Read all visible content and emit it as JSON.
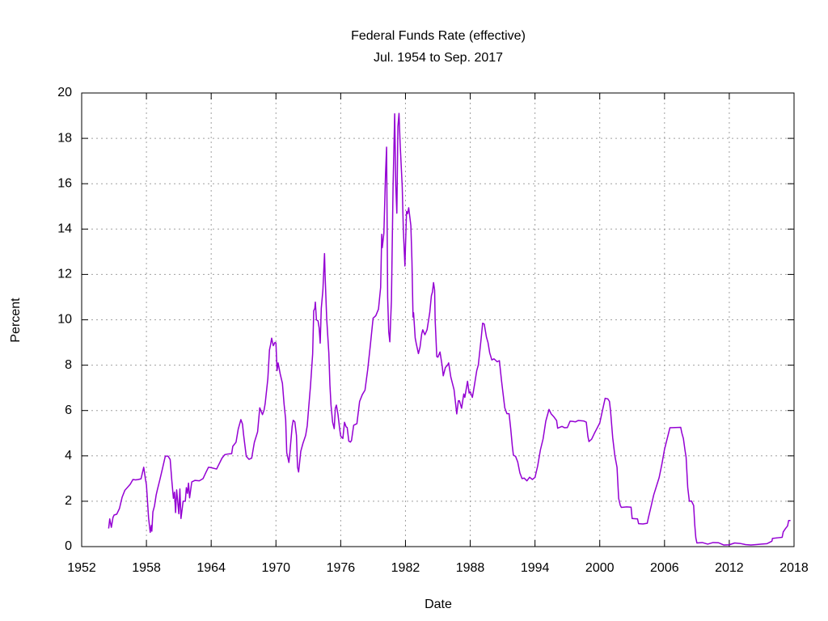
{
  "chart_data": {
    "type": "line",
    "title": "Federal Funds Rate (effective)",
    "subtitle": "Jul. 1954 to Sep. 2017",
    "x_label": "Date",
    "y_label": "Percent",
    "xlim": [
      1952,
      2018
    ],
    "xticks": [
      1952,
      1958,
      1964,
      1970,
      1976,
      1982,
      1988,
      1994,
      2000,
      2006,
      2012,
      2018
    ],
    "ylim": [
      0,
      20
    ],
    "yticks": [
      0,
      2,
      4,
      6,
      8,
      10,
      12,
      14,
      16,
      18,
      20
    ],
    "grid": true,
    "color": "#9400d3",
    "x": [
      1954.5,
      1954.6,
      1954.75,
      1954.9,
      1955.0,
      1955.25,
      1955.5,
      1955.75,
      1956.0,
      1956.5,
      1956.75,
      1957.0,
      1957.25,
      1957.5,
      1957.75,
      1957.9,
      1958.0,
      1958.2,
      1958.35,
      1958.45,
      1958.5,
      1958.6,
      1958.75,
      1958.9,
      1959.0,
      1959.25,
      1959.5,
      1959.75,
      1960.0,
      1960.2,
      1960.35,
      1960.5,
      1960.6,
      1960.7,
      1960.8,
      1960.9,
      1961.0,
      1961.1,
      1961.2,
      1961.4,
      1961.6,
      1961.7,
      1961.8,
      1961.9,
      1962.0,
      1962.2,
      1962.5,
      1962.9,
      1963.25,
      1963.5,
      1963.75,
      1964.0,
      1964.5,
      1965.0,
      1965.25,
      1965.5,
      1965.9,
      1966.0,
      1966.3,
      1966.5,
      1966.75,
      1966.9,
      1967.0,
      1967.25,
      1967.5,
      1967.75,
      1968.0,
      1968.3,
      1968.5,
      1968.75,
      1968.9,
      1969.0,
      1969.25,
      1969.4,
      1969.5,
      1969.6,
      1969.75,
      1969.9,
      1970.0,
      1970.1,
      1970.2,
      1970.4,
      1970.6,
      1970.75,
      1970.9,
      1971.0,
      1971.2,
      1971.3,
      1971.5,
      1971.6,
      1971.75,
      1971.9,
      1972.0,
      1972.1,
      1972.3,
      1972.5,
      1972.75,
      1972.9,
      1973.0,
      1973.2,
      1973.4,
      1973.5,
      1973.6,
      1973.65,
      1973.75,
      1973.9,
      1974.0,
      1974.1,
      1974.2,
      1974.35,
      1974.5,
      1974.55,
      1974.7,
      1974.9,
      1975.0,
      1975.1,
      1975.25,
      1975.4,
      1975.5,
      1975.6,
      1975.75,
      1975.9,
      1976.0,
      1976.2,
      1976.35,
      1976.5,
      1976.6,
      1976.75,
      1976.9,
      1977.0,
      1977.2,
      1977.5,
      1977.75,
      1978.0,
      1978.25,
      1978.5,
      1978.75,
      1979.0,
      1979.25,
      1979.5,
      1979.7,
      1979.8,
      1979.85,
      1980.0,
      1980.15,
      1980.25,
      1980.35,
      1980.45,
      1980.55,
      1980.7,
      1980.85,
      1981.0,
      1981.1,
      1981.2,
      1981.3,
      1981.4,
      1981.5,
      1981.7,
      1981.8,
      1981.95,
      1982.0,
      1982.1,
      1982.2,
      1982.3,
      1982.5,
      1982.6,
      1982.7,
      1982.75,
      1982.9,
      1983.0,
      1983.2,
      1983.35,
      1983.5,
      1983.6,
      1983.8,
      1984.0,
      1984.25,
      1984.4,
      1984.5,
      1984.6,
      1984.7,
      1984.75,
      1984.9,
      1985.0,
      1985.2,
      1985.4,
      1985.5,
      1985.7,
      1985.9,
      1986.0,
      1986.2,
      1986.5,
      1986.75,
      1986.9,
      1987.0,
      1987.2,
      1987.4,
      1987.5,
      1987.75,
      1987.9,
      1988.0,
      1988.2,
      1988.4,
      1988.6,
      1988.75,
      1989.0,
      1989.15,
      1989.3,
      1989.5,
      1989.65,
      1989.8,
      1990.0,
      1990.2,
      1990.5,
      1990.7,
      1990.9,
      1991.0,
      1991.2,
      1991.4,
      1991.6,
      1991.75,
      1991.9,
      1992.0,
      1992.2,
      1992.4,
      1992.6,
      1992.8,
      1993.0,
      1993.25,
      1993.5,
      1993.75,
      1994.0,
      1994.25,
      1994.5,
      1994.75,
      1995.0,
      1995.3,
      1995.5,
      1995.75,
      1996.0,
      1996.1,
      1996.5,
      1996.75,
      1997.0,
      1997.25,
      1997.5,
      1997.75,
      1998.0,
      1998.5,
      1998.75,
      1998.9,
      1999.0,
      1999.25,
      1999.5,
      1999.75,
      2000.0,
      2000.25,
      2000.5,
      2000.75,
      2000.9,
      2001.0,
      2001.2,
      2001.4,
      2001.6,
      2001.75,
      2001.9,
      2002.0,
      2002.5,
      2002.9,
      2003.0,
      2003.5,
      2003.6,
      2004.0,
      2004.4,
      2004.5,
      2004.75,
      2005.0,
      2005.5,
      2005.75,
      2006.0,
      2006.5,
      2007.0,
      2007.5,
      2007.6,
      2007.75,
      2007.9,
      2008.0,
      2008.15,
      2008.3,
      2008.5,
      2008.7,
      2008.8,
      2008.9,
      2009.0,
      2009.5,
      2010.0,
      2010.5,
      2011.0,
      2011.5,
      2012.0,
      2012.5,
      2013.0,
      2013.5,
      2014.0,
      2014.5,
      2015.0,
      2015.5,
      2015.95,
      2016.0,
      2016.5,
      2016.9,
      2017.0,
      2017.2,
      2017.4,
      2017.5,
      2017.67
    ],
    "values": [
      0.8,
      1.22,
      0.85,
      1.28,
      1.39,
      1.43,
      1.68,
      2.18,
      2.48,
      2.75,
      2.96,
      2.94,
      2.96,
      2.99,
      3.5,
      3.0,
      2.72,
      1.26,
      0.63,
      0.93,
      0.68,
      1.53,
      1.8,
      2.27,
      2.48,
      2.96,
      3.47,
      3.99,
      3.99,
      3.84,
      2.92,
      2.13,
      2.4,
      1.5,
      2.5,
      1.98,
      1.45,
      2.54,
      1.24,
      2.0,
      2.0,
      2.6,
      2.35,
      2.8,
      2.15,
      2.85,
      2.92,
      2.9,
      3.0,
      3.26,
      3.5,
      3.48,
      3.42,
      3.9,
      4.05,
      4.08,
      4.1,
      4.42,
      4.6,
      5.17,
      5.6,
      5.4,
      4.94,
      3.98,
      3.85,
      3.9,
      4.6,
      5.06,
      6.12,
      5.82,
      6.02,
      6.3,
      7.41,
      8.67,
      8.9,
      9.19,
      8.86,
      9.0,
      8.98,
      7.76,
      8.1,
      7.6,
      7.2,
      6.3,
      5.6,
      4.14,
      3.71,
      4.2,
      5.3,
      5.57,
      5.5,
      4.9,
      3.5,
      3.29,
      4.2,
      4.55,
      4.9,
      5.33,
      5.94,
      7.09,
      8.49,
      10.4,
      10.5,
      10.78,
      10.0,
      9.95,
      9.65,
      8.97,
      10.51,
      11.31,
      12.92,
      12.01,
      10.06,
      8.53,
      7.13,
      6.24,
      5.49,
      5.2,
      6.1,
      6.24,
      5.82,
      5.2,
      4.87,
      4.77,
      5.48,
      5.28,
      5.25,
      4.65,
      4.61,
      4.68,
      5.35,
      5.42,
      6.4,
      6.7,
      6.9,
      7.8,
      8.9,
      10.07,
      10.18,
      10.47,
      11.43,
      13.77,
      13.18,
      13.82,
      16.39,
      17.61,
      10.98,
      9.47,
      9.03,
      10.87,
      15.85,
      19.08,
      15.93,
      14.7,
      18.52,
      19.1,
      17.82,
      15.87,
      14.0,
      12.37,
      13.22,
      14.78,
      14.68,
      14.94,
      14.15,
      12.59,
      10.12,
      10.31,
      9.2,
      8.95,
      8.51,
      8.8,
      9.37,
      9.56,
      9.34,
      9.56,
      10.32,
      11.06,
      11.23,
      11.64,
      11.3,
      9.99,
      8.38,
      8.35,
      8.58,
      7.97,
      7.53,
      7.9,
      8.0,
      8.1,
      7.48,
      6.92,
      5.85,
      6.43,
      6.43,
      6.1,
      6.73,
      6.58,
      7.29,
      6.77,
      6.83,
      6.58,
      7.15,
      7.75,
      8.01,
      9.12,
      9.85,
      9.81,
      9.24,
      8.99,
      8.55,
      8.23,
      8.28,
      8.15,
      8.2,
      7.31,
      6.91,
      6.12,
      5.86,
      5.86,
      5.2,
      4.43,
      4.03,
      3.98,
      3.73,
      3.25,
      3.0,
      3.02,
      2.9,
      3.06,
      2.96,
      3.05,
      3.56,
      4.26,
      4.75,
      5.53,
      6.05,
      5.85,
      5.72,
      5.56,
      5.22,
      5.3,
      5.24,
      5.25,
      5.53,
      5.52,
      5.5,
      5.56,
      5.54,
      5.49,
      4.86,
      4.63,
      4.74,
      4.99,
      5.22,
      5.45,
      6.0,
      6.54,
      6.51,
      6.4,
      5.98,
      4.8,
      4.0,
      3.5,
      2.13,
      1.82,
      1.73,
      1.75,
      1.74,
      1.24,
      1.22,
      1.01,
      1.0,
      1.03,
      1.26,
      1.76,
      2.28,
      3.04,
      3.62,
      4.29,
      5.24,
      5.25,
      5.26,
      5.02,
      4.76,
      4.24,
      3.94,
      2.61,
      2.0,
      2.01,
      1.81,
      0.97,
      0.39,
      0.16,
      0.18,
      0.11,
      0.18,
      0.17,
      0.07,
      0.08,
      0.16,
      0.14,
      0.09,
      0.07,
      0.09,
      0.11,
      0.13,
      0.24,
      0.36,
      0.39,
      0.41,
      0.65,
      0.79,
      0.91,
      1.15,
      1.15
    ]
  }
}
